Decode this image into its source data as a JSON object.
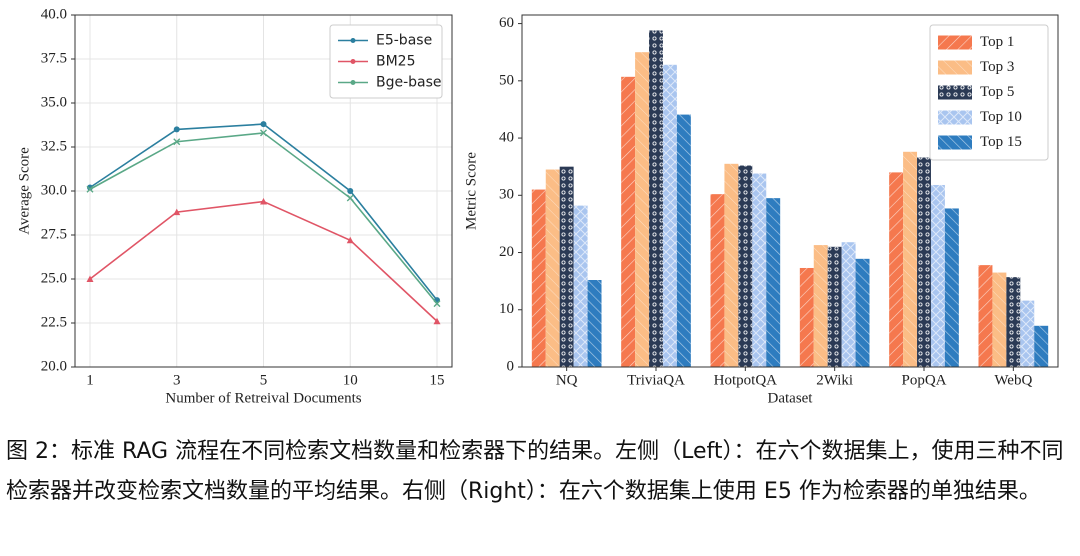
{
  "chart_data": [
    {
      "type": "line",
      "xlabel": "Number of Retreival Documents",
      "ylabel": "Average Score",
      "categories": [
        "1",
        "3",
        "5",
        "10",
        "15"
      ],
      "series": [
        {
          "name": "E5-base",
          "color": "#2b7f9f",
          "values": [
            30.2,
            33.5,
            33.8,
            30.0,
            23.8
          ]
        },
        {
          "name": "BM25",
          "color": "#e05566",
          "values": [
            25.0,
            28.8,
            29.4,
            27.2,
            22.6
          ]
        },
        {
          "name": "Bge-base",
          "color": "#5aa887",
          "values": [
            30.1,
            32.8,
            33.3,
            29.6,
            23.6
          ]
        }
      ],
      "ylim": [
        20,
        40
      ],
      "yticks": [
        {
          "value": 20,
          "label": "20.0"
        },
        {
          "value": 22.5,
          "label": "22.5"
        },
        {
          "value": 25,
          "label": "25.0"
        },
        {
          "value": 27.5,
          "label": "27.5"
        },
        {
          "value": 30,
          "label": "30.0"
        },
        {
          "value": 32.5,
          "label": "32.5"
        },
        {
          "value": 35,
          "label": "35.0"
        },
        {
          "value": 37.5,
          "label": "37.5"
        },
        {
          "value": 40,
          "label": "40.0"
        }
      ],
      "grid": true,
      "legend": "upper right"
    },
    {
      "type": "bar",
      "xlabel": "Dataset",
      "ylabel": "Metric Score",
      "categories": [
        "NQ",
        "TriviaQA",
        "HotpotQA",
        "2Wiki",
        "PopQA",
        "WebQ"
      ],
      "series": [
        {
          "name": "Top 1",
          "color": "#f5784e",
          "values": [
            31.0,
            50.7,
            30.2,
            17.3,
            34.0,
            17.8
          ]
        },
        {
          "name": "Top 3",
          "color": "#fbbd86",
          "values": [
            34.5,
            55.0,
            35.5,
            21.3,
            37.6,
            16.5
          ]
        },
        {
          "name": "Top 5",
          "color": "#2b3a55",
          "values": [
            35.0,
            58.8,
            35.2,
            21.0,
            36.6,
            15.7
          ]
        },
        {
          "name": "Top 10",
          "color": "#a9c5ef",
          "values": [
            28.2,
            52.8,
            33.8,
            21.8,
            31.8,
            11.6
          ]
        },
        {
          "name": "Top 15",
          "color": "#2e7cbf",
          "values": [
            15.2,
            44.1,
            29.5,
            18.9,
            27.7,
            7.2
          ]
        }
      ],
      "ylim": [
        0,
        61.5
      ],
      "yticks": [
        0,
        10,
        20,
        30,
        40,
        50,
        60
      ],
      "grid": false,
      "legend": "upper right"
    }
  ],
  "caption": "图 2：标准 RAG 流程在不同检索文档数量和检索器下的结果。左侧（Left）：在六个数据集上，使用三种不同检索器并改变检索文档数量的平均结果。右侧（Right）：在六个数据集上使用 E5 作为检索器的单独结果。"
}
